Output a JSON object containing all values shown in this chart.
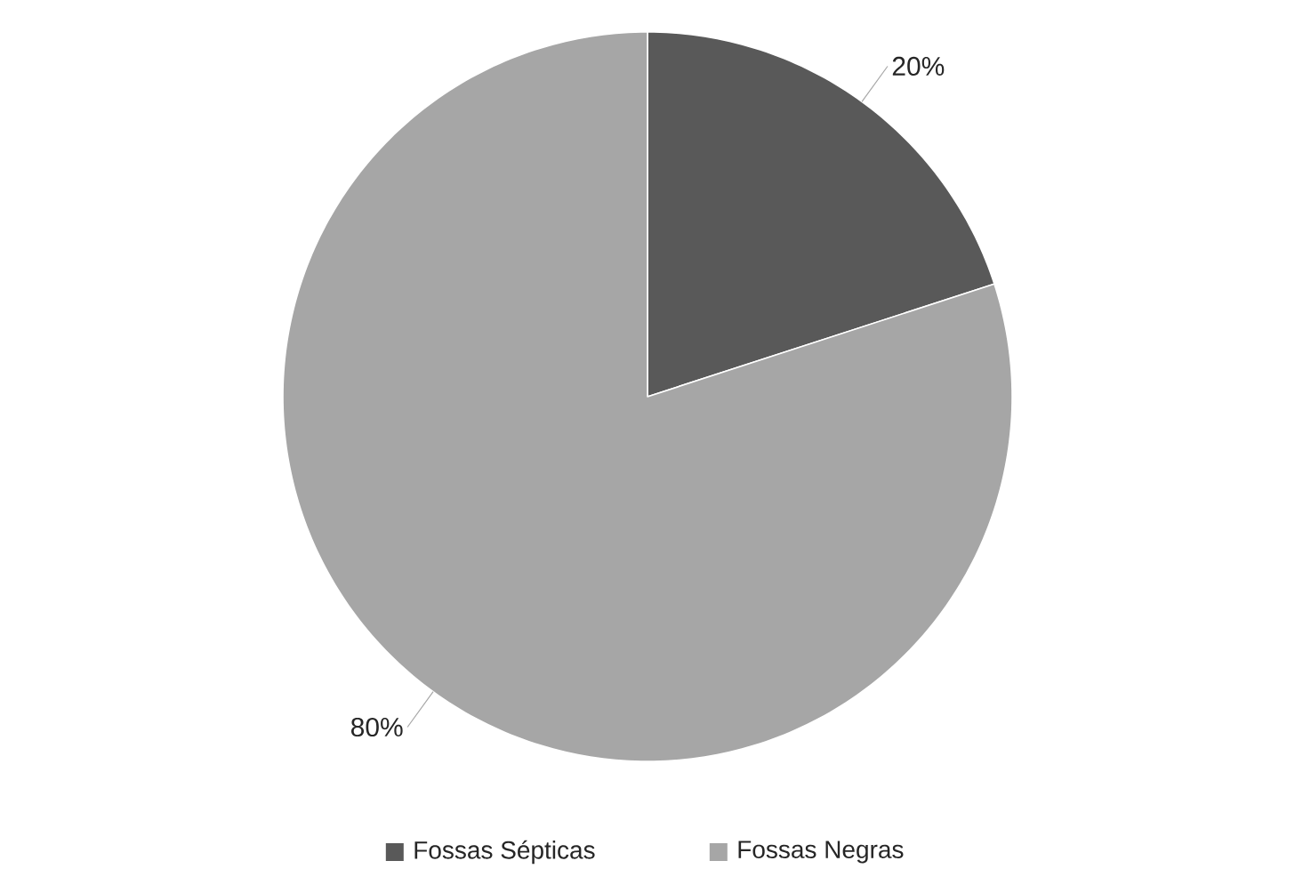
{
  "chart_data": {
    "type": "pie",
    "categories": [
      "Fossas Sépticas",
      "Fossas Negras"
    ],
    "values": [
      20,
      80
    ],
    "colors": [
      "#595959",
      "#a6a6a6"
    ],
    "value_labels": [
      "20%",
      "80%"
    ],
    "legend": "bottom"
  }
}
